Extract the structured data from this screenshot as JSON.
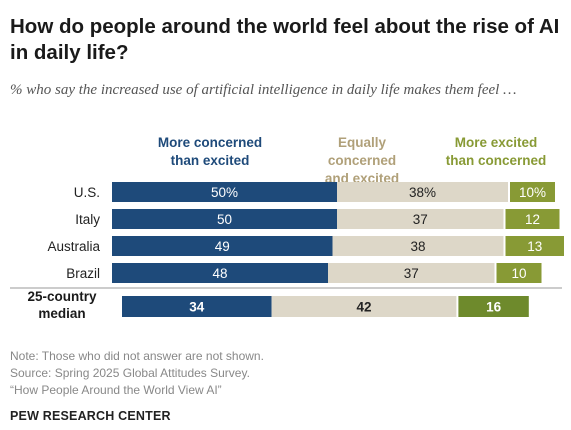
{
  "title": "How do people around the world feel about the rise of AI in daily life?",
  "subtitle": "% who say the increased use of artificial intelligence in daily life makes them feel …",
  "chart_data": {
    "type": "bar",
    "orientation": "horizontal",
    "stacked": true,
    "categories": [
      "U.S.",
      "Italy",
      "Australia",
      "Brazil",
      "25-country median"
    ],
    "series": [
      {
        "name": "More concerned than excited",
        "values": [
          50,
          50,
          49,
          48,
          34
        ],
        "color": "#1e4a7a"
      },
      {
        "name": "Equally concerned and excited",
        "values": [
          38,
          37,
          38,
          37,
          42
        ],
        "color": "#ddd7c8"
      },
      {
        "name": "More excited than concerned",
        "values": [
          10,
          12,
          13,
          10,
          16
        ],
        "color": "#889a35"
      }
    ],
    "data_labels": [
      [
        "50%",
        "50",
        "49",
        "48",
        "34"
      ],
      [
        "38%",
        "37",
        "38",
        "37",
        "42"
      ],
      [
        "10%",
        "12",
        "13",
        "10",
        "16"
      ]
    ],
    "median_color_excited": "#6e8a2c"
  },
  "legend": {
    "concerned": "More concerned\nthan excited",
    "equal": "Equally concerned\nand excited",
    "excited": "More excited\nthan concerned"
  },
  "notes": [
    "Note: Those who did not answer are not shown.",
    "Source: Spring 2025 Global Attitudes Survey.",
    "“How People Around the World View AI”"
  ],
  "brand": "PEW RESEARCH CENTER"
}
